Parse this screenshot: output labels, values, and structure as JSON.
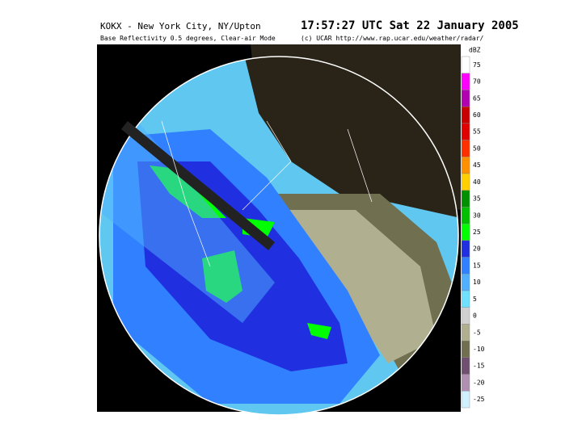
{
  "header": {
    "station": "KOKX - New York City, NY/Upton",
    "time": "17:57:27 UTC Sat 22 January 2005",
    "product": "Base Reflectivity 0.5 degrees, Clear-air Mode",
    "credit": "(c) UCAR http://www.rap.ucar.edu/weather/radar/"
  },
  "legend": {
    "title": "dBZ",
    "levels": [
      {
        "label": "75",
        "color": "#ffffff"
      },
      {
        "label": "70",
        "color": "#ff00ff"
      },
      {
        "label": "65",
        "color": "#b000b0"
      },
      {
        "label": "60",
        "color": "#c80000"
      },
      {
        "label": "55",
        "color": "#e00000"
      },
      {
        "label": "50",
        "color": "#ff3000"
      },
      {
        "label": "45",
        "color": "#ff9000"
      },
      {
        "label": "40",
        "color": "#ffd000"
      },
      {
        "label": "35",
        "color": "#009000"
      },
      {
        "label": "30",
        "color": "#00c000"
      },
      {
        "label": "25",
        "color": "#00ff00"
      },
      {
        "label": "20",
        "color": "#2030e0"
      },
      {
        "label": "15",
        "color": "#3080ff"
      },
      {
        "label": "10",
        "color": "#50b0ff"
      },
      {
        "label": "5",
        "color": "#70e0ff"
      },
      {
        "label": "0",
        "color": "#d0d0d0"
      },
      {
        "label": "-5",
        "color": "#b0b090"
      },
      {
        "label": "-10",
        "color": "#707050"
      },
      {
        "label": "-15",
        "color": "#705070"
      },
      {
        "label": "-20",
        "color": "#b090b0"
      },
      {
        "label": "-25",
        "color": "#d0f0ff"
      }
    ]
  }
}
